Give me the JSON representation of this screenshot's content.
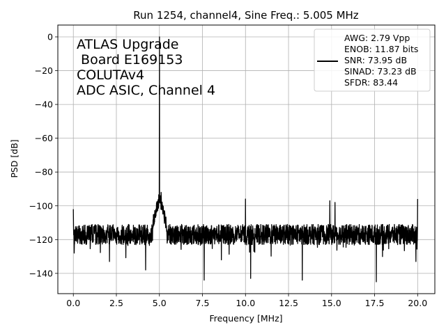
{
  "chart_data": {
    "type": "line",
    "title": "Run 1254, channel4, Sine Freq.: 5.005 MHz",
    "xlabel": "Frequency [MHz]",
    "ylabel": "PSD [dB]",
    "xlim": [
      -0.9,
      21.0
    ],
    "ylim": [
      -152,
      7
    ],
    "grid": true,
    "x_ticks": [
      0.0,
      2.5,
      5.0,
      7.5,
      10.0,
      12.5,
      15.0,
      17.5,
      20.0
    ],
    "x_tick_labels": [
      "0.0",
      "2.5",
      "5.0",
      "7.5",
      "10.0",
      "12.5",
      "15.0",
      "17.5",
      "20.0"
    ],
    "y_ticks": [
      0,
      -20,
      -40,
      -60,
      -80,
      -100,
      -120,
      -140
    ],
    "y_tick_labels": [
      "0",
      "−20",
      "−40",
      "−60",
      "−80",
      "−100",
      "−120",
      "−140"
    ],
    "annotation_lines": [
      "ATLAS Upgrade",
      " Board E169153",
      "COLUTAv4",
      "ADC ASIC, Channel 4"
    ],
    "legend": {
      "placement": "top-right",
      "lines": [
        "AWG: 2.79 Vpp",
        "ENOB: 11.87 bits",
        "SNR: 73.95 dB",
        "SINAD: 73.23 dB",
        "SFDR: 83.44"
      ]
    },
    "series": [
      {
        "color": "#000000",
        "noise_floor_db": -117,
        "noise_spread_db": 6,
        "spurs": [
          {
            "x": 0.0,
            "y": -102
          },
          {
            "x": 0.05,
            "y": -128
          },
          {
            "x": 2.1,
            "y": -133
          },
          {
            "x": 4.2,
            "y": -138
          },
          {
            "x": 4.8,
            "y": -106
          },
          {
            "x": 5.005,
            "y": 0
          },
          {
            "x": 5.1,
            "y": -92
          },
          {
            "x": 5.3,
            "y": -103
          },
          {
            "x": 7.6,
            "y": -144
          },
          {
            "x": 8.6,
            "y": -132
          },
          {
            "x": 10.0,
            "y": -96
          },
          {
            "x": 10.3,
            "y": -143
          },
          {
            "x": 13.3,
            "y": -144
          },
          {
            "x": 14.9,
            "y": -97
          },
          {
            "x": 15.2,
            "y": -98
          },
          {
            "x": 17.6,
            "y": -145
          },
          {
            "x": 19.9,
            "y": -133
          },
          {
            "x": 20.0,
            "y": -96
          }
        ]
      }
    ]
  }
}
